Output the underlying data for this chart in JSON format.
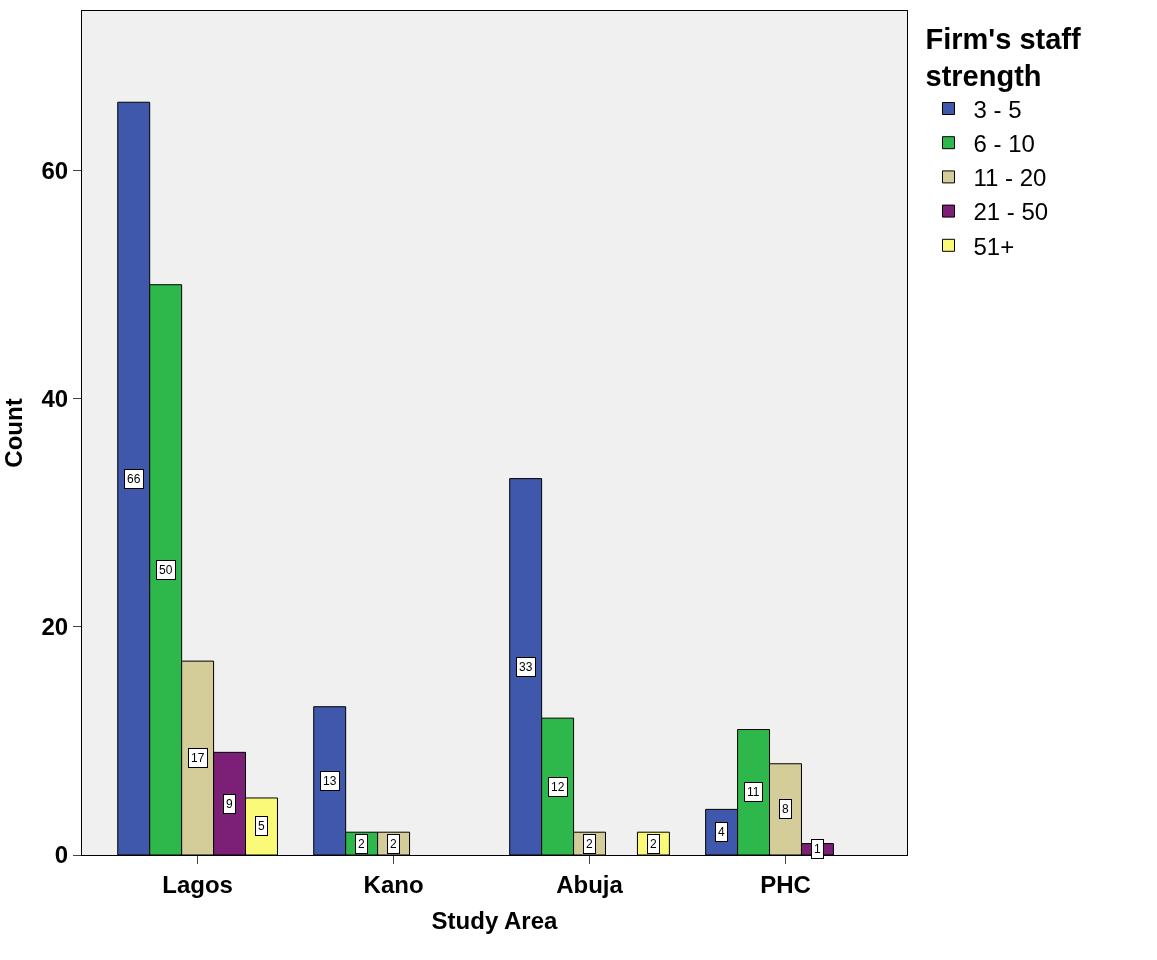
{
  "chart_data": {
    "type": "bar",
    "xlabel": "Study Area",
    "ylabel": "Count",
    "legend_title": "Firm's staff strength",
    "categories": [
      "Lagos",
      "Kano",
      "Abuja",
      "PHC"
    ],
    "series": [
      {
        "name": "3 - 5",
        "color": "#3f58ab",
        "values": [
          66,
          13,
          33,
          4
        ]
      },
      {
        "name": "6 - 10",
        "color": "#2eb84b",
        "values": [
          50,
          2,
          12,
          11
        ]
      },
      {
        "name": "11 - 20",
        "color": "#d4cc99",
        "values": [
          17,
          2,
          2,
          8
        ]
      },
      {
        "name": "21 - 50",
        "color": "#7b1f77",
        "values": [
          9,
          null,
          null,
          1
        ]
      },
      {
        "name": "51+",
        "color": "#fafa78",
        "values": [
          5,
          null,
          2,
          null
        ]
      }
    ],
    "ylim": [
      0,
      74
    ],
    "yticks": [
      0,
      20,
      40,
      60
    ],
    "grid": false,
    "legend": "top right",
    "data_labels": true
  }
}
